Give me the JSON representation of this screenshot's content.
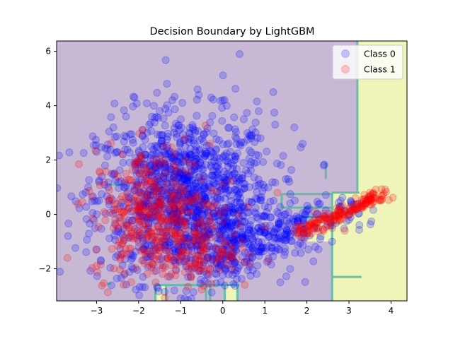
{
  "chart_data": {
    "type": "scatter",
    "title": "Decision Boundary by LightGBM",
    "xlabel": "",
    "ylabel": "",
    "xlim": [
      -3.95,
      4.38
    ],
    "ylim": [
      -3.18,
      6.38
    ],
    "xticks": [
      -3,
      -2,
      -1,
      0,
      1,
      2,
      3,
      4
    ],
    "yticks": [
      -2,
      0,
      2,
      4,
      6
    ],
    "xtick_labels": [
      "−3",
      "−2",
      "−1",
      "0",
      "1",
      "2",
      "3",
      "4"
    ],
    "ytick_labels": [
      "−2",
      "0",
      "2",
      "4",
      "6"
    ],
    "grid": false,
    "legend_position": "top-right",
    "background_region": {
      "class_0_color": "#c7b9d5",
      "class_1_color": "#eff5b8",
      "boundary_color": "#5fb7a4",
      "class_1_regions_note": "predicted class 1 mainly for x > 3.2 and a band around x 2.6-3.2, y < 0.8"
    },
    "series": [
      {
        "name": "Class 0",
        "color": "#0000ff",
        "alpha": 0.2,
        "cluster_center": [
          -0.9,
          0.6
        ],
        "points_sample": [
          [
            -3.2,
            1.0
          ],
          [
            -3.0,
            2.3
          ],
          [
            -2.8,
            1.8
          ],
          [
            -2.6,
            3.2
          ],
          [
            -2.5,
            -1.5
          ],
          [
            -2.3,
            3.6
          ],
          [
            -2.1,
            4.3
          ],
          [
            -2.0,
            0.1
          ],
          [
            -1.9,
            -2.3
          ],
          [
            -1.7,
            2.5
          ],
          [
            -1.5,
            3.8
          ],
          [
            -1.4,
            -0.4
          ],
          [
            -1.2,
            4.2
          ],
          [
            -1.0,
            1.5
          ],
          [
            -0.9,
            -1.2
          ],
          [
            -0.8,
            3.0
          ],
          [
            -0.6,
            4.6
          ],
          [
            -0.5,
            0.7
          ],
          [
            -0.3,
            -2.0
          ],
          [
            -0.2,
            2.1
          ],
          [
            0.0,
            4.2
          ],
          [
            0.1,
            1.2
          ],
          [
            0.3,
            -0.8
          ],
          [
            0.4,
            5.9
          ],
          [
            0.5,
            3.5
          ],
          [
            0.7,
            -1.6
          ],
          [
            0.9,
            2.8
          ],
          [
            1.0,
            0.3
          ],
          [
            1.2,
            4.5
          ],
          [
            1.3,
            -0.5
          ],
          [
            1.5,
            1.3
          ],
          [
            1.7,
            3.2
          ],
          [
            1.9,
            2.6
          ],
          [
            2.1,
            -0.3
          ],
          [
            2.4,
            1.8
          ],
          [
            2.6,
            -1.0
          ],
          [
            2.8,
            0.5
          ],
          [
            3.0,
            -0.2
          ],
          [
            3.3,
            0.4
          ],
          [
            -2.2,
            -0.8
          ],
          [
            -1.1,
            0.1
          ],
          [
            0.2,
            0.5
          ]
        ]
      },
      {
        "name": "Class 1",
        "color": "#ff0000",
        "alpha": 0.2,
        "points_sample": [
          [
            -2.7,
            0.9
          ],
          [
            -2.6,
            -0.5
          ],
          [
            -2.5,
            0.2
          ],
          [
            -2.4,
            -1.1
          ],
          [
            -2.3,
            0.6
          ],
          [
            -2.1,
            1.9
          ],
          [
            -2.0,
            -0.3
          ],
          [
            -1.9,
            3.1
          ],
          [
            -1.8,
            -2.2
          ],
          [
            -1.7,
            1.2
          ],
          [
            -1.6,
            -2.5
          ],
          [
            -1.5,
            0.4
          ],
          [
            -1.4,
            2.5
          ],
          [
            -1.3,
            -1.3
          ],
          [
            -1.1,
            1.6
          ],
          [
            -1.0,
            -0.7
          ],
          [
            -0.9,
            2.8
          ],
          [
            -0.8,
            0.5
          ],
          [
            -0.7,
            -1.9
          ],
          [
            -0.5,
            1.3
          ],
          [
            -0.4,
            -1.0
          ],
          [
            -0.3,
            2.6
          ],
          [
            -0.1,
            0.1
          ],
          [
            0.0,
            1.1
          ],
          [
            0.2,
            -1.5
          ],
          [
            0.4,
            -0.4
          ],
          [
            0.6,
            0.3
          ],
          [
            1.0,
            -0.5
          ],
          [
            1.3,
            0.8
          ],
          [
            1.8,
            -0.4
          ],
          [
            2.0,
            -0.6
          ],
          [
            2.2,
            0.1
          ],
          [
            2.4,
            -0.6
          ],
          [
            2.6,
            -0.5
          ],
          [
            2.8,
            -0.2
          ],
          [
            3.0,
            0.0
          ],
          [
            3.2,
            0.2
          ],
          [
            3.4,
            0.4
          ],
          [
            3.6,
            0.6
          ],
          [
            3.8,
            0.7
          ],
          [
            3.5,
            0.8
          ],
          [
            2.9,
            -0.6
          ]
        ]
      }
    ]
  }
}
